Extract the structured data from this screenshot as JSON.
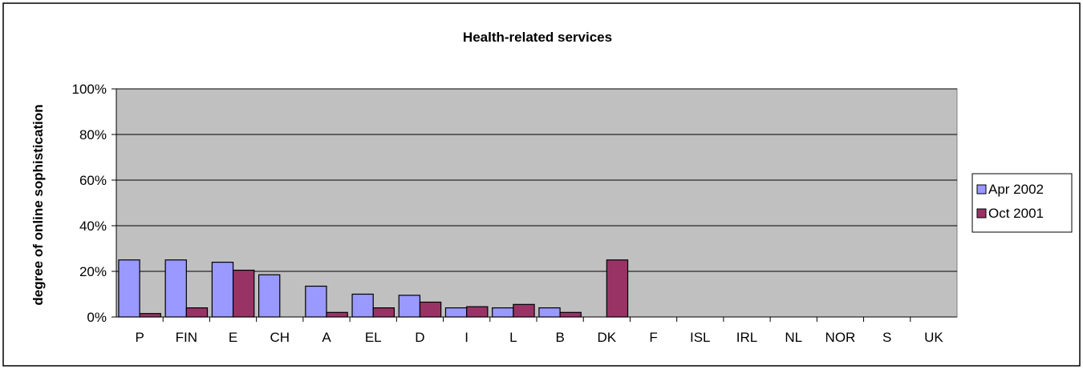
{
  "chart_data": {
    "type": "bar",
    "title": "Health-related services",
    "ylabel": "degree of online sophistication",
    "xlabel": "",
    "ylim": [
      0,
      100
    ],
    "yticks": [
      "0%",
      "20%",
      "40%",
      "60%",
      "80%",
      "100%"
    ],
    "ytick_values": [
      0,
      20,
      40,
      60,
      80,
      100
    ],
    "grid": true,
    "legend_position": "right",
    "categories": [
      "P",
      "FIN",
      "E",
      "CH",
      "A",
      "EL",
      "D",
      "I",
      "L",
      "B",
      "DK",
      "F",
      "ISL",
      "IRL",
      "NL",
      "NOR",
      "S",
      "UK"
    ],
    "series": [
      {
        "name": "Apr 2002",
        "color": "#9999FF",
        "values": [
          25,
          25,
          24,
          18.5,
          13.5,
          10,
          9.5,
          4,
          4,
          4,
          0,
          0,
          0,
          0,
          0,
          0,
          0,
          0
        ]
      },
      {
        "name": "Oct 2001",
        "color": "#993366",
        "values": [
          1.5,
          4,
          20.5,
          0,
          2,
          4,
          6.5,
          4.5,
          5.5,
          2,
          25,
          0,
          0,
          0,
          0,
          0,
          0,
          0
        ]
      }
    ],
    "plot_background": "#C0C0C0"
  }
}
